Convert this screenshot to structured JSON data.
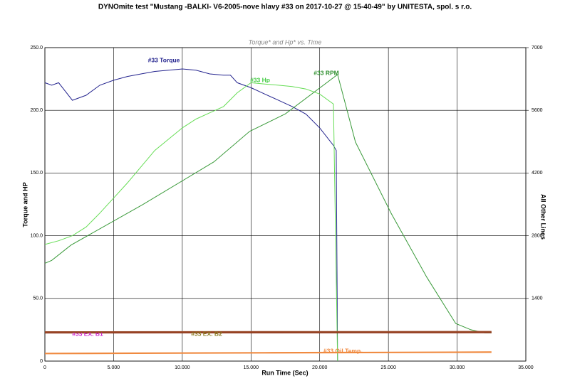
{
  "chart_data": {
    "type": "line",
    "title": "DYNOmite test \"Mustang -BALKI- V6-2005-nove hlavy #33 on 2017-10-27 @ 15-40-49\" by UNITESTA, spol. s r.o.",
    "subtitle": "Torque* and Hp* vs. Time",
    "x_label": "Run Time (Sec)",
    "y_label": "Torque and HP",
    "y2_label": "All Other Lines",
    "xlim": [
      0,
      35
    ],
    "xticks": [
      0,
      {
        "value": 5,
        "label": "5.000"
      },
      {
        "value": 10,
        "label": "10.000"
      },
      {
        "value": 15,
        "label": "15.000"
      },
      {
        "value": 20,
        "label": "20.000"
      },
      {
        "value": 25,
        "label": "25.000"
      },
      {
        "value": 30,
        "label": "30.000"
      },
      {
        "value": 35,
        "label": "35.000"
      }
    ],
    "ylim": [
      0,
      250
    ],
    "yticks": [
      0,
      {
        "value": 50,
        "label": "50.0"
      },
      {
        "value": 100,
        "label": "100.0"
      },
      {
        "value": 150,
        "label": "150.0"
      },
      {
        "value": 200,
        "label": "200.0"
      },
      {
        "value": 250,
        "label": "250.0"
      }
    ],
    "y2lim": [
      0,
      7000
    ],
    "y2ticks": [
      1400,
      2800,
      4200,
      5600,
      7000
    ],
    "grid": true,
    "series": [
      {
        "name": "#33 Torque",
        "color": "#23238e",
        "axis": "y",
        "x": [
          0,
          0.5,
          1,
          2,
          3,
          4,
          5,
          6,
          7,
          8,
          9,
          10,
          11,
          12,
          13,
          13.5,
          14,
          15,
          16,
          17,
          18,
          19,
          20,
          21,
          21.2,
          21.3
        ],
        "values": [
          222,
          220,
          222,
          208,
          212,
          220,
          224,
          227,
          229,
          231,
          232,
          233,
          232,
          229,
          228,
          228,
          222,
          218,
          213,
          208,
          203,
          197,
          186,
          172,
          168,
          0
        ]
      },
      {
        "name": "#33 Hp",
        "color": "#66dd55",
        "axis": "y",
        "x": [
          0,
          1,
          2,
          3,
          4,
          5,
          6,
          7,
          8,
          9,
          10,
          11,
          12,
          13,
          14,
          15,
          16,
          17,
          18,
          19,
          20,
          21,
          21.3
        ],
        "values": [
          93,
          96,
          100,
          107,
          118,
          130,
          142,
          155,
          168,
          177,
          186,
          193,
          198,
          203,
          214,
          222,
          221,
          220,
          219,
          217,
          213,
          205,
          0
        ]
      },
      {
        "name": "#33 RPM",
        "color": "#3a9a3a",
        "axis": "y2",
        "x": [
          0,
          0.5,
          1.9,
          7.1,
          12.3,
          14.9,
          17.5,
          21.3,
          22.6,
          25.2,
          27.8,
          29.9,
          31,
          32,
          32.5
        ],
        "values": [
          2184,
          2250,
          2590,
          3490,
          4450,
          5130,
          5520,
          6400,
          4890,
          3300,
          1870,
          840,
          700,
          630,
          630
        ]
      },
      {
        "name": "#33 EX. B1",
        "color": "#8b2a10",
        "axis": "y2",
        "x": [
          0,
          32.5
        ],
        "values": [
          635,
          640
        ]
      },
      {
        "name": "#33 EX. B2",
        "color": "#9a4a2a",
        "axis": "y2",
        "x": [
          0,
          32.5
        ],
        "values": [
          650,
          655
        ]
      },
      {
        "name": "#33 Oil Temp",
        "color": "#f08a40",
        "axis": "y2",
        "x": [
          0,
          16,
          32.5
        ],
        "values": [
          170,
          185,
          200
        ]
      }
    ]
  }
}
